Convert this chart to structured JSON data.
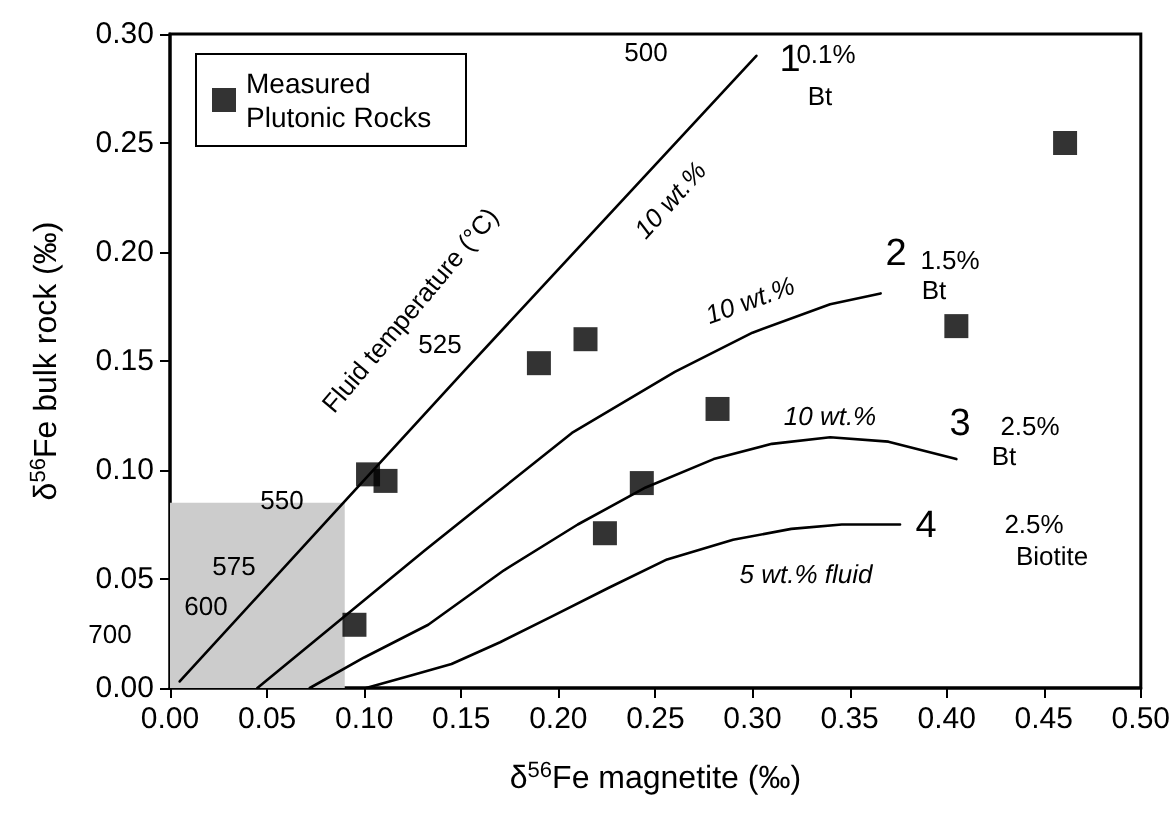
{
  "chart_data": {
    "type": "line",
    "xlabel": "δ$^{56}$Fe magnetite (‰)",
    "ylabel": "δ$^{56}$Fe bulk rock (‰)",
    "xlim": [
      0,
      0.5
    ],
    "ylim": [
      0,
      0.3
    ],
    "xticks": [
      {
        "value": 0,
        "label": "0.00"
      },
      {
        "value": 0.05,
        "label": "0.05"
      },
      {
        "value": 0.1,
        "label": "0.10"
      },
      {
        "value": 0.15,
        "label": "0.15"
      },
      {
        "value": 0.2,
        "label": "0.20"
      },
      {
        "value": 0.25,
        "label": "0.25"
      },
      {
        "value": 0.3,
        "label": "0.30"
      },
      {
        "value": 0.35,
        "label": "0.35"
      },
      {
        "value": 0.4,
        "label": "0.40"
      },
      {
        "value": 0.45,
        "label": "0.45"
      },
      {
        "value": 0.5,
        "label": "0.50"
      }
    ],
    "yticks": [
      {
        "value": 0,
        "label": "0.00"
      },
      {
        "value": 0.05,
        "label": "0.05"
      },
      {
        "value": 0.1,
        "label": "0.10"
      },
      {
        "value": 0.15,
        "label": "0.15"
      },
      {
        "value": 0.2,
        "label": "0.20"
      },
      {
        "value": 0.25,
        "label": "0.25"
      },
      {
        "value": 0.3,
        "label": "0.30"
      }
    ],
    "grid": false,
    "legend": "top left",
    "series": [
      {
        "type": "area",
        "color": "#cccccc",
        "x": [
          0,
          0.09
        ],
        "values": [
          0.085,
          0.085
        ]
      },
      {
        "color": "#000000",
        "x": [
          0.005,
          0.15,
          0.302
        ],
        "values": [
          0.003,
          0.144,
          0.29
        ]
      },
      {
        "color": "#000000",
        "x": [
          0.045,
          0.131,
          0.207,
          0.26,
          0.3,
          0.34,
          0.366
        ],
        "values": [
          0,
          0.063,
          0.117,
          0.145,
          0.163,
          0.176,
          0.181
        ]
      },
      {
        "color": "#000000",
        "x": [
          0.072,
          0.1,
          0.133,
          0.172,
          0.21,
          0.245,
          0.28,
          0.31,
          0.34,
          0.37,
          0.405
        ],
        "values": [
          0,
          0.014,
          0.029,
          0.054,
          0.075,
          0.092,
          0.105,
          0.112,
          0.115,
          0.113,
          0.105
        ]
      },
      {
        "color": "#000000",
        "x": [
          0.101,
          0.125,
          0.145,
          0.17,
          0.197,
          0.226,
          0.256,
          0.29,
          0.32,
          0.346,
          0.376
        ],
        "values": [
          0,
          0.006,
          0.011,
          0.021,
          0.033,
          0.046,
          0.059,
          0.068,
          0.073,
          0.075,
          0.075
        ]
      },
      {
        "type": "scatter",
        "name": "Measured Plutonic Rocks",
        "color": "#000000",
        "marker": "square",
        "x": [
          0.095,
          0.102,
          0.111,
          0.19,
          0.214,
          0.224,
          0.243,
          0.282,
          0.405,
          0.461
        ],
        "values": [
          0.029,
          0.098,
          0.095,
          0.149,
          0.16,
          0.071,
          0.094,
          0.128,
          0.166,
          0.25
        ]
      }
    ],
    "annotations": [
      "Fluid temperature (°C)",
      "500",
      "525",
      "550",
      "575",
      "600",
      "700",
      "1",
      "0.1%",
      "Bt",
      "2",
      "1.5%",
      "Bt",
      "3",
      "2.5%",
      "Bt",
      "4",
      "2.5%",
      "Biotite",
      "10 wt.%",
      "10 wt.%",
      "10 wt.%",
      "5 wt.% fluid"
    ]
  }
}
